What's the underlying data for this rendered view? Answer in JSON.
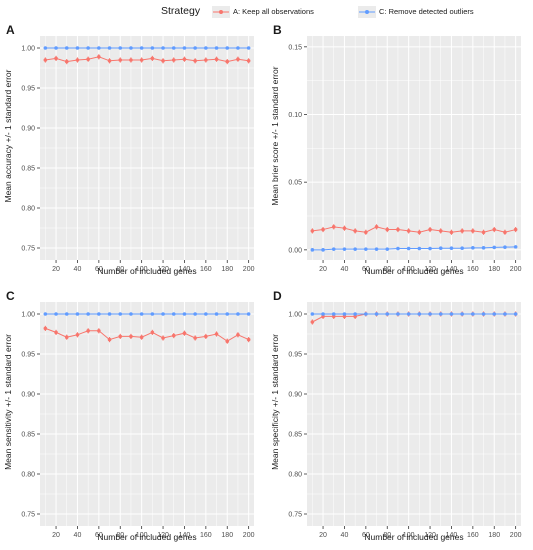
{
  "legend": {
    "title": "Strategy",
    "items": [
      {
        "label": "A: Keep all observations",
        "color": "#F8766D"
      },
      {
        "label": "C: Remove detected outliers",
        "color": "#619CFF"
      }
    ]
  },
  "chart_data": [
    {
      "type": "line",
      "panel": "A",
      "xlabel": "Number of included genes",
      "ylabel": "Mean accuracy +/- 1 standard error",
      "x": [
        10,
        20,
        30,
        40,
        50,
        60,
        70,
        80,
        90,
        100,
        110,
        120,
        130,
        140,
        150,
        160,
        170,
        180,
        190,
        200
      ],
      "xticks": [
        20,
        40,
        60,
        80,
        100,
        120,
        140,
        160,
        180,
        200
      ],
      "xlim": [
        5,
        205
      ],
      "ylim": [
        0.735,
        1.015
      ],
      "yticks": [
        "0.75",
        "0.80",
        "0.85",
        "0.90",
        "0.95",
        "1.00"
      ],
      "background": "#EBEBEB",
      "grid": true,
      "series": [
        {
          "name": "A: Keep all observations",
          "color": "#F8766D",
          "values": [
            0.985,
            0.987,
            0.983,
            0.985,
            0.986,
            0.989,
            0.984,
            0.985,
            0.985,
            0.985,
            0.987,
            0.984,
            0.985,
            0.986,
            0.984,
            0.985,
            0.986,
            0.983,
            0.986,
            0.984
          ]
        },
        {
          "name": "C: Remove detected outliers",
          "color": "#619CFF",
          "values": [
            1.0,
            1.0,
            1.0,
            1.0,
            1.0,
            1.0,
            1.0,
            1.0,
            1.0,
            1.0,
            1.0,
            1.0,
            1.0,
            1.0,
            1.0,
            1.0,
            1.0,
            1.0,
            1.0,
            1.0
          ]
        }
      ]
    },
    {
      "type": "line",
      "panel": "B",
      "xlabel": "Number of included genes",
      "ylabel": "Mean brier score +/- 1 standard error",
      "x": [
        10,
        20,
        30,
        40,
        50,
        60,
        70,
        80,
        90,
        100,
        110,
        120,
        130,
        140,
        150,
        160,
        170,
        180,
        190,
        200
      ],
      "xticks": [
        20,
        40,
        60,
        80,
        100,
        120,
        140,
        160,
        180,
        200
      ],
      "xlim": [
        5,
        205
      ],
      "ylim": [
        -0.0075,
        0.158
      ],
      "yticks": [
        "0.00",
        "0.05",
        "0.10",
        "0.15"
      ],
      "background": "#EBEBEB",
      "grid": true,
      "series": [
        {
          "name": "A: Keep all observations",
          "color": "#F8766D",
          "values": [
            0.014,
            0.015,
            0.017,
            0.016,
            0.014,
            0.013,
            0.017,
            0.015,
            0.015,
            0.014,
            0.013,
            0.015,
            0.014,
            0.013,
            0.014,
            0.014,
            0.013,
            0.015,
            0.013,
            0.015
          ]
        },
        {
          "name": "C: Remove detected outliers",
          "color": "#619CFF",
          "values": [
            0.0,
            0.0,
            0.0005,
            0.0005,
            0.0005,
            0.0005,
            0.0005,
            0.0005,
            0.001,
            0.001,
            0.001,
            0.001,
            0.0012,
            0.0012,
            0.0012,
            0.0015,
            0.0015,
            0.0018,
            0.002,
            0.0022
          ]
        }
      ]
    },
    {
      "type": "line",
      "panel": "C",
      "xlabel": "Number of included genes",
      "ylabel": "Mean sensitivity +/- 1 standard error",
      "x": [
        10,
        20,
        30,
        40,
        50,
        60,
        70,
        80,
        90,
        100,
        110,
        120,
        130,
        140,
        150,
        160,
        170,
        180,
        190,
        200
      ],
      "xticks": [
        20,
        40,
        60,
        80,
        100,
        120,
        140,
        160,
        180,
        200
      ],
      "xlim": [
        5,
        205
      ],
      "ylim": [
        0.735,
        1.015
      ],
      "yticks": [
        "0.75",
        "0.80",
        "0.85",
        "0.90",
        "0.95",
        "1.00"
      ],
      "background": "#EBEBEB",
      "grid": true,
      "series": [
        {
          "name": "A: Keep all observations",
          "color": "#F8766D",
          "values": [
            0.982,
            0.977,
            0.971,
            0.974,
            0.979,
            0.979,
            0.968,
            0.972,
            0.972,
            0.971,
            0.977,
            0.97,
            0.973,
            0.976,
            0.97,
            0.972,
            0.975,
            0.966,
            0.974,
            0.968
          ]
        },
        {
          "name": "C: Remove detected outliers",
          "color": "#619CFF",
          "values": [
            1.0,
            1.0,
            1.0,
            1.0,
            1.0,
            1.0,
            1.0,
            1.0,
            1.0,
            1.0,
            1.0,
            1.0,
            1.0,
            1.0,
            1.0,
            1.0,
            1.0,
            1.0,
            1.0,
            1.0
          ]
        }
      ]
    },
    {
      "type": "line",
      "panel": "D",
      "xlabel": "Number of included genes",
      "ylabel": "Mean specificity +/- 1 standard error",
      "x": [
        10,
        20,
        30,
        40,
        50,
        60,
        70,
        80,
        90,
        100,
        110,
        120,
        130,
        140,
        150,
        160,
        170,
        180,
        190,
        200
      ],
      "xticks": [
        20,
        40,
        60,
        80,
        100,
        120,
        140,
        160,
        180,
        200
      ],
      "xlim": [
        5,
        205
      ],
      "ylim": [
        0.735,
        1.015
      ],
      "yticks": [
        "0.75",
        "0.80",
        "0.85",
        "0.90",
        "0.95",
        "1.00"
      ],
      "background": "#EBEBEB",
      "grid": true,
      "series": [
        {
          "name": "A: Keep all observations",
          "color": "#F8766D",
          "values": [
            0.99,
            0.997,
            0.997,
            0.997,
            0.997,
            1.0,
            1.0,
            1.0,
            1.0,
            1.0,
            1.0,
            1.0,
            1.0,
            1.0,
            1.0,
            1.0,
            1.0,
            1.0,
            1.0,
            1.0
          ]
        },
        {
          "name": "C: Remove detected outliers",
          "color": "#619CFF",
          "values": [
            1.0,
            1.0,
            1.0,
            1.0,
            1.0,
            1.0,
            1.0,
            1.0,
            1.0,
            1.0,
            1.0,
            1.0,
            1.0,
            1.0,
            1.0,
            1.0,
            1.0,
            1.0,
            1.0,
            1.0
          ]
        }
      ]
    }
  ]
}
